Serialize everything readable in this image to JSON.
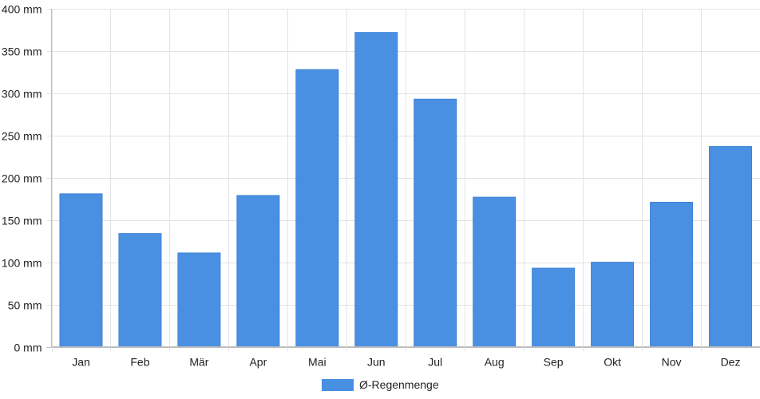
{
  "chart_data": {
    "type": "bar",
    "title": "",
    "xlabel": "",
    "ylabel": "",
    "categories": [
      "Jan",
      "Feb",
      "Mär",
      "Apr",
      "Mai",
      "Jun",
      "Jul",
      "Aug",
      "Sep",
      "Okt",
      "Nov",
      "Dez"
    ],
    "series": [
      {
        "name": "Ø-Regenmenge",
        "values": [
          181,
          134,
          111,
          179,
          328,
          372,
          293,
          177,
          93,
          100,
          171,
          237
        ],
        "color": "#4a90e2"
      }
    ],
    "ylim": [
      0,
      400
    ],
    "yticks": [
      "0 mm",
      "50 mm",
      "100 mm",
      "150 mm",
      "200 mm",
      "250 mm",
      "300 mm",
      "350 mm",
      "400 mm"
    ],
    "grid": true,
    "legend_position": "bottom"
  }
}
